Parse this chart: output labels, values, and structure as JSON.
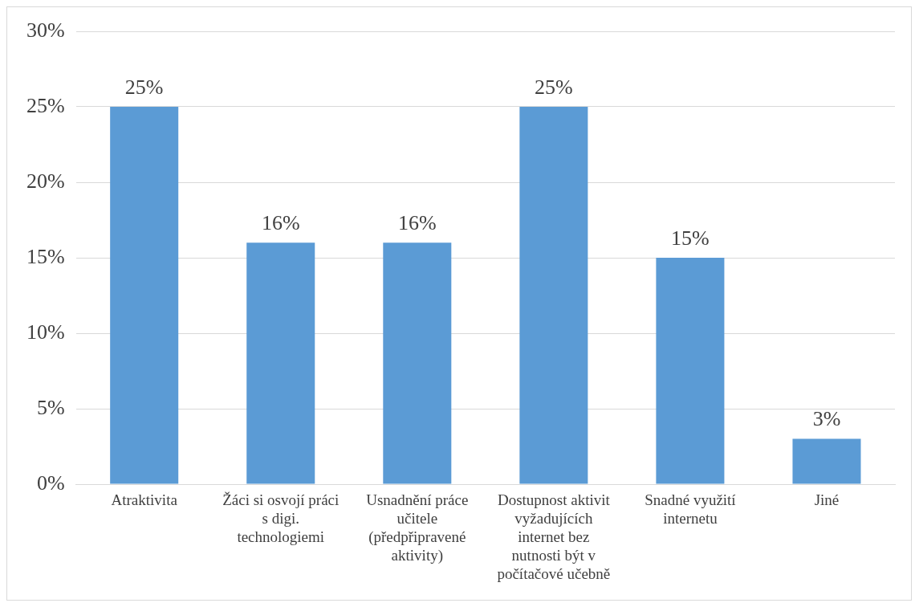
{
  "chart_data": {
    "type": "bar",
    "categories": [
      "Atraktivita",
      "Žáci si osvojí práci s digi. technologiemi",
      "Usnadnění práce učitele (předpřipravené aktivity)",
      "Dostupnost aktivit vyžadujících internet bez nutnosti být v počítačové učebně",
      "Snadné využití internetu",
      "Jiné"
    ],
    "values": [
      25,
      16,
      16,
      25,
      15,
      3
    ],
    "value_labels": [
      "25%",
      "16%",
      "16%",
      "25%",
      "15%",
      "3%"
    ],
    "color": "#5b9bd5",
    "ylim": [
      0,
      30
    ],
    "yticks": [
      {
        "value": 0,
        "label": "0%"
      },
      {
        "value": 5,
        "label": "5%"
      },
      {
        "value": 10,
        "label": "10%"
      },
      {
        "value": 15,
        "label": "15%"
      },
      {
        "value": 20,
        "label": "20%"
      },
      {
        "value": 25,
        "label": "25%"
      },
      {
        "value": 30,
        "label": "30%"
      }
    ],
    "grid": "y",
    "legend": false
  }
}
